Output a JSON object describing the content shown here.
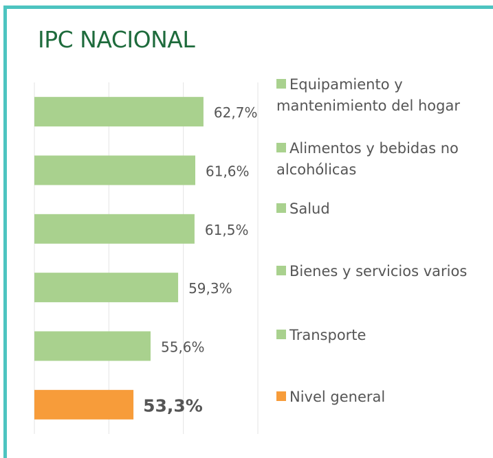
{
  "chart_data": {
    "type": "bar",
    "orientation": "horizontal",
    "title": "IPC NACIONAL",
    "categories": [
      "Equipamiento y mantenimiento del hogar",
      "Alimentos y bebidas no alcohólicas",
      "Salud",
      "Bienes y servicios varios",
      "Transporte",
      "Nivel general"
    ],
    "values": [
      62.7,
      61.6,
      61.5,
      59.3,
      55.6,
      53.3
    ],
    "value_labels": [
      "62,7%",
      "61,6%",
      "61,5%",
      "59,3%",
      "55,6%",
      "53,3%"
    ],
    "colors": [
      "#a9d18e",
      "#a9d18e",
      "#a9d18e",
      "#a9d18e",
      "#a9d18e",
      "#f79c3a"
    ],
    "xlim": [
      40,
      70
    ],
    "xticks": [
      40,
      50,
      60,
      70
    ],
    "grid": true,
    "legend": "right"
  }
}
